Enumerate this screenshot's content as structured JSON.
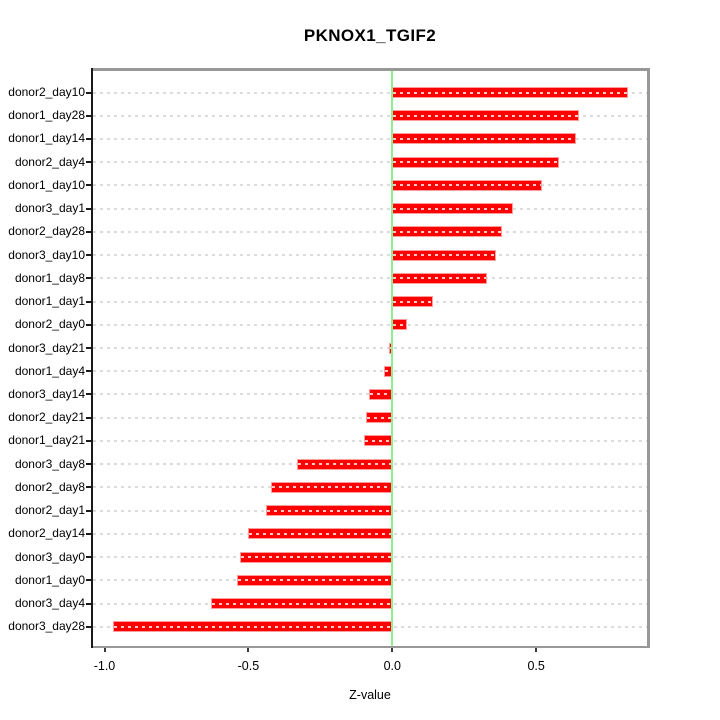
{
  "title": "PKNOX1_TGIF2",
  "chart_data": {
    "type": "bar",
    "orientation": "horizontal",
    "title": "PKNOX1_TGIF2",
    "xlabel": "Z-value",
    "ylabel": "",
    "xlim": [
      -1.04,
      0.885
    ],
    "xticks": [
      -1.0,
      -0.5,
      0.0,
      0.5
    ],
    "xtick_labels": [
      "-1.0",
      "-0.5",
      "0.0",
      "0.5"
    ],
    "grid": true,
    "grid_style": "dashed",
    "zero_reference_line": 0.0,
    "categories": [
      "donor2_day10",
      "donor1_day28",
      "donor1_day14",
      "donor2_day4",
      "donor1_day10",
      "donor3_day1",
      "donor2_day28",
      "donor3_day10",
      "donor1_day8",
      "donor1_day1",
      "donor2_day0",
      "donor3_day21",
      "donor1_day4",
      "donor3_day14",
      "donor2_day21",
      "donor1_day21",
      "donor3_day8",
      "donor2_day8",
      "donor2_day1",
      "donor2_day14",
      "donor3_day0",
      "donor1_day0",
      "donor3_day4",
      "donor3_day28"
    ],
    "values": [
      0.82,
      0.65,
      0.64,
      0.58,
      0.52,
      0.42,
      0.38,
      0.36,
      0.33,
      0.14,
      0.05,
      -0.01,
      -0.03,
      -0.08,
      -0.09,
      -0.1,
      -0.33,
      -0.42,
      -0.44,
      -0.5,
      -0.53,
      -0.54,
      -0.63,
      -0.97
    ],
    "colors": {
      "bar_fill": "#ff0000",
      "bar_border": "#ff9d9d",
      "zero_line": "#90ee90",
      "gridline": "#dcdcdc",
      "box_gray": "#989898",
      "axis_black": "#1a1a1a",
      "tick_color": "#3a3a3a",
      "text": "#000000",
      "background": "#ffffff"
    }
  }
}
